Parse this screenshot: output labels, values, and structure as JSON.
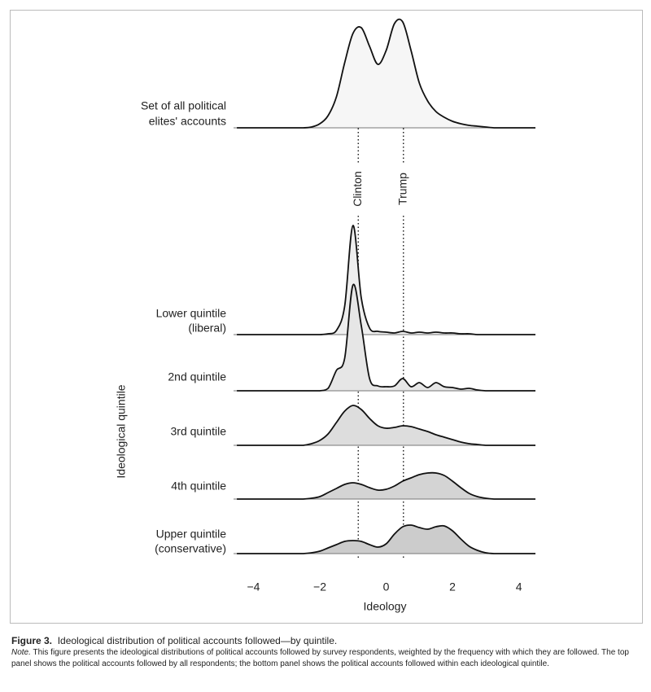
{
  "chart_data": {
    "type": "ridgeline",
    "x_label": "Ideology",
    "y_label": "Ideological quintile",
    "xlim": [
      -4.6,
      4.5
    ],
    "xticks": [
      {
        "value": -4,
        "label": "−4"
      },
      {
        "value": -2,
        "label": "−2"
      },
      0,
      2,
      4
    ],
    "x": [
      -4.5,
      -4.25,
      -4,
      -3.75,
      -3.5,
      -3.25,
      -3,
      -2.75,
      -2.5,
      -2.25,
      -2,
      -1.75,
      -1.5,
      -1.25,
      -1,
      -0.75,
      -0.5,
      -0.25,
      0,
      0.25,
      0.5,
      0.75,
      1,
      1.25,
      1.5,
      1.75,
      2,
      2.25,
      2.5,
      2.75,
      3,
      3.25,
      3.5,
      3.75,
      4,
      4.25,
      4.5
    ],
    "reference_lines": [
      {
        "label": "Clinton",
        "x": -0.84
      },
      {
        "label": "Trump",
        "x": 0.52
      }
    ],
    "series": [
      {
        "name": [
          "Set of all political",
          "elites' accounts"
        ],
        "color": "#f6f6f6",
        "values": [
          0,
          0,
          0,
          0,
          0,
          0,
          0,
          0,
          0,
          0.01,
          0.05,
          0.15,
          0.38,
          0.8,
          1.16,
          1.23,
          1.0,
          0.78,
          0.95,
          1.28,
          1.3,
          0.95,
          0.55,
          0.33,
          0.2,
          0.13,
          0.08,
          0.05,
          0.03,
          0.02,
          0.01,
          0,
          0,
          0,
          0,
          0,
          0
        ]
      },
      {
        "name": [
          "Lower quintile",
          "(liberal)"
        ],
        "color": "#eeeeee",
        "values": [
          0,
          0,
          0,
          0,
          0,
          0,
          0,
          0,
          0,
          0,
          0,
          0.01,
          0.05,
          0.35,
          1.34,
          0.45,
          0.08,
          0.04,
          0.03,
          0.02,
          0.04,
          0.02,
          0.03,
          0.02,
          0.03,
          0.02,
          0.02,
          0.01,
          0.01,
          0,
          0,
          0,
          0,
          0,
          0,
          0,
          0
        ]
      },
      {
        "name": [
          "2nd quintile"
        ],
        "color": "#e6e6e6",
        "values": [
          0,
          0,
          0,
          0,
          0,
          0,
          0,
          0,
          0,
          0,
          0,
          0.03,
          0.25,
          0.4,
          1.3,
          0.8,
          0.15,
          0.06,
          0.05,
          0.06,
          0.15,
          0.05,
          0.1,
          0.04,
          0.1,
          0.05,
          0.04,
          0.02,
          0.03,
          0.01,
          0,
          0,
          0,
          0,
          0,
          0,
          0
        ]
      },
      {
        "name": [
          "3rd quintile"
        ],
        "color": "#dddddd",
        "values": [
          0,
          0,
          0,
          0,
          0,
          0,
          0,
          0,
          0,
          0.02,
          0.06,
          0.14,
          0.28,
          0.42,
          0.49,
          0.44,
          0.33,
          0.24,
          0.21,
          0.22,
          0.24,
          0.23,
          0.2,
          0.17,
          0.13,
          0.1,
          0.07,
          0.04,
          0.02,
          0.01,
          0,
          0,
          0,
          0,
          0,
          0,
          0
        ]
      },
      {
        "name": [
          "4th quintile"
        ],
        "color": "#d4d4d4",
        "values": [
          0,
          0,
          0,
          0,
          0,
          0,
          0,
          0,
          0,
          0.01,
          0.03,
          0.08,
          0.13,
          0.18,
          0.2,
          0.18,
          0.14,
          0.11,
          0.12,
          0.16,
          0.22,
          0.26,
          0.3,
          0.32,
          0.32,
          0.29,
          0.22,
          0.14,
          0.07,
          0.03,
          0.01,
          0,
          0,
          0,
          0,
          0,
          0
        ]
      },
      {
        "name": [
          "Upper quintile",
          "(conservative)"
        ],
        "color": "#cccccc",
        "values": [
          0,
          0,
          0,
          0,
          0,
          0,
          0,
          0,
          0,
          0.01,
          0.03,
          0.07,
          0.11,
          0.15,
          0.16,
          0.15,
          0.11,
          0.08,
          0.12,
          0.24,
          0.33,
          0.35,
          0.32,
          0.3,
          0.33,
          0.34,
          0.28,
          0.18,
          0.09,
          0.04,
          0.01,
          0,
          0,
          0,
          0,
          0,
          0
        ]
      }
    ]
  },
  "caption": {
    "label": "Figure 3.",
    "text": "Ideological distribution of political accounts followed—by quintile."
  },
  "note": {
    "label": "Note.",
    "text": "This figure presents the ideological distributions of political accounts followed by survey respondents, weighted by the frequency with which they are followed. The top panel shows the political accounts followed by all respondents; the bottom panel shows the political accounts followed within each ideological quintile."
  }
}
